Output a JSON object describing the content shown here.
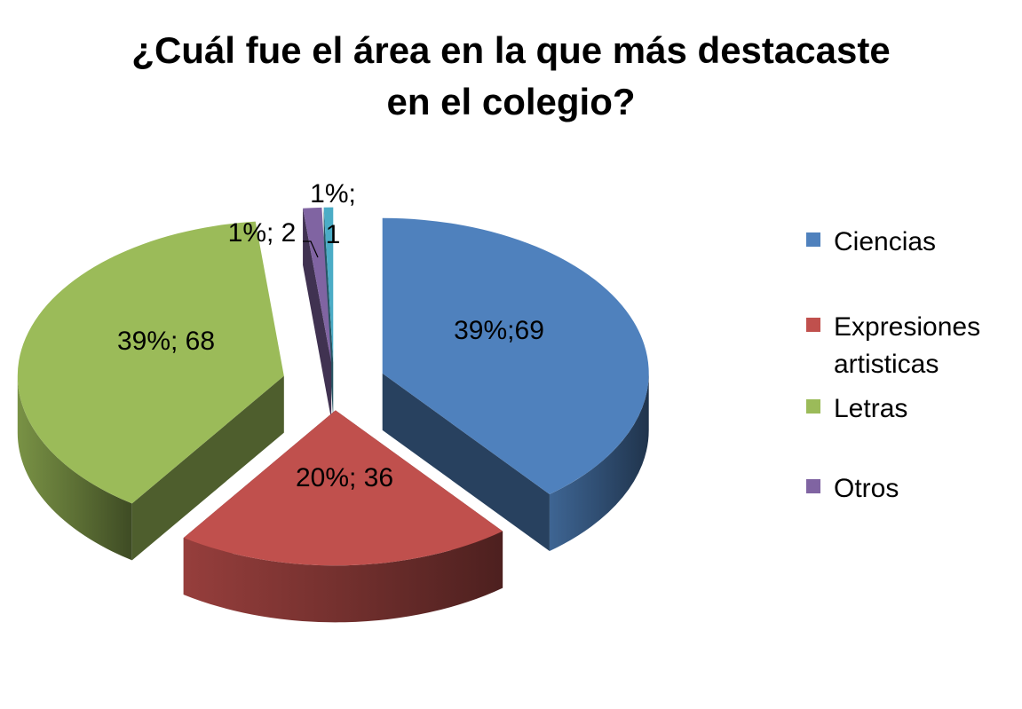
{
  "chart_data": {
    "type": "pie",
    "title_lines": [
      "¿Cuál fue el área en la que más destacaste",
      "en el colegio?"
    ],
    "slices": [
      {
        "name": "Ciencias",
        "value": 69,
        "percent_label": "39%;69",
        "color": "#4F81BD"
      },
      {
        "name": "Expresiones artisticas",
        "value": 36,
        "percent_label": "20%; 36",
        "color": "#C0504D"
      },
      {
        "name": "Letras",
        "value": 68,
        "percent_label": "39%; 68",
        "color": "#9BBB59"
      },
      {
        "name": "Otros",
        "value": 2,
        "percent_label": "1%; 2",
        "color": "#8064A2"
      },
      {
        "name": "",
        "value": 1,
        "percent_label": "1%; 1",
        "color": "#4BACC6"
      }
    ],
    "legend": {
      "placement": "right",
      "entries": [
        {
          "lines": [
            "Ciencias"
          ],
          "color": "#4F81BD"
        },
        {
          "lines": [
            "Expresiones",
            "artisticas"
          ],
          "color": "#C0504D"
        },
        {
          "lines": [
            "Letras"
          ],
          "color": "#9BBB59"
        },
        {
          "lines": [
            "Otros"
          ],
          "color": "#8064A2"
        }
      ]
    },
    "style": "3d-exploded"
  }
}
